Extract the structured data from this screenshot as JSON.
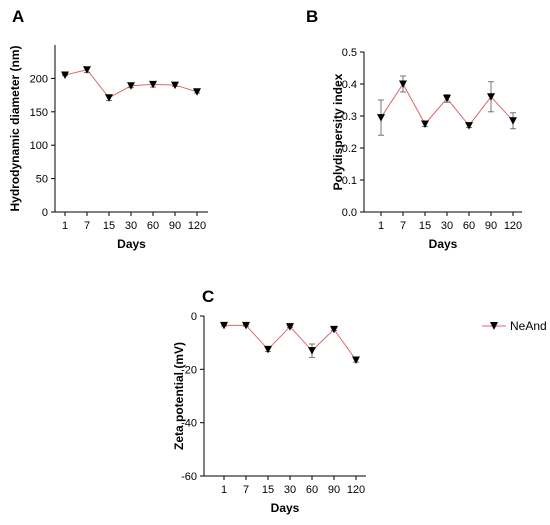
{
  "legend": {
    "label": "NeAnd",
    "line_color": "#e06666",
    "marker_color": "#000000",
    "placement": "right"
  },
  "chart_data": [
    {
      "type": "line",
      "panel": "A",
      "categories": [
        "1",
        "7",
        "15",
        "30",
        "60",
        "90",
        "120"
      ],
      "series": [
        {
          "name": "NeAnd",
          "values": [
            205,
            213,
            171,
            189,
            191,
            190,
            180
          ],
          "errors": [
            1,
            4,
            4,
            3,
            4,
            2,
            2
          ]
        }
      ],
      "xlabel": "Days",
      "ylabel": "Hydrodynamic diameter (nm)",
      "ylim": [
        0,
        250
      ],
      "yticks": [
        0,
        50,
        100,
        150,
        200
      ]
    },
    {
      "type": "line",
      "panel": "B",
      "categories": [
        "1",
        "7",
        "15",
        "30",
        "60",
        "90",
        "120"
      ],
      "series": [
        {
          "name": "NeAnd",
          "values": [
            0.295,
            0.4,
            0.275,
            0.355,
            0.27,
            0.36,
            0.285
          ],
          "errors": [
            0.055,
            0.025,
            0.008,
            0.012,
            0.006,
            0.047,
            0.025
          ]
        }
      ],
      "xlabel": "Days",
      "ylabel": "Polydispersity index",
      "ylim": [
        0,
        0.5
      ],
      "yticks": [
        0.0,
        0.1,
        0.2,
        0.3,
        0.4,
        0.5
      ]
    },
    {
      "type": "line",
      "panel": "C",
      "categories": [
        "1",
        "7",
        "15",
        "30",
        "60",
        "90",
        "120"
      ],
      "series": [
        {
          "name": "NeAnd",
          "values": [
            -3.5,
            -3.5,
            -12.5,
            -4,
            -13,
            -5,
            -16.5
          ],
          "errors": [
            0.3,
            0.3,
            0.8,
            0.3,
            2.5,
            0.4,
            0.8
          ]
        }
      ],
      "xlabel": "Days",
      "ylabel": "Zeta potential (mV)",
      "ylim": [
        -60,
        0
      ],
      "yticks": [
        0,
        -20,
        -40,
        -60
      ]
    }
  ]
}
